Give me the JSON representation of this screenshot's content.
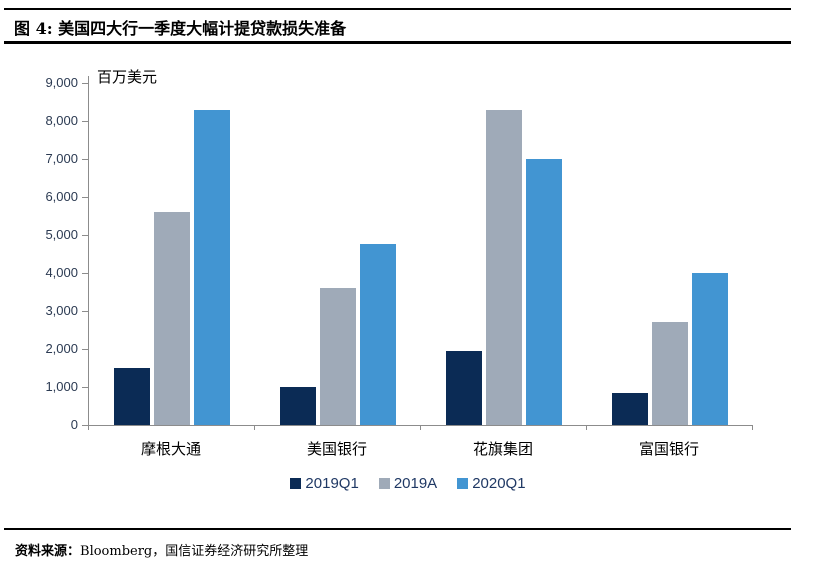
{
  "header": {
    "title": "图 4:  美国四大行一季度大幅计提贷款损失准备"
  },
  "chart_data": {
    "type": "bar",
    "title": "美国四大行一季度大幅计提贷款损失准备",
    "unit_label": "百万美元",
    "xlabel": "",
    "ylabel": "百万美元",
    "categories": [
      "摩根大通",
      "美国银行",
      "花旗集团",
      "富国银行"
    ],
    "series": [
      {
        "name": "2019Q1",
        "color": "#0b2b55",
        "values": [
          1500,
          1000,
          1950,
          850
        ]
      },
      {
        "name": "2019A",
        "color": "#9faab8",
        "values": [
          5600,
          3600,
          8300,
          2700
        ]
      },
      {
        "name": "2020Q1",
        "color": "#4295d2",
        "values": [
          8300,
          4750,
          7000,
          4000
        ]
      }
    ],
    "ylim": [
      0,
      9000
    ],
    "ytick_step": 1000,
    "ytick_labels": [
      "0",
      "1,000",
      "2,000",
      "3,000",
      "4,000",
      "5,000",
      "6,000",
      "7,000",
      "8,000",
      "9,000"
    ],
    "grid": false,
    "legend_position": "bottom"
  },
  "footer": {
    "source_label": "资料来源：",
    "source_text": "Bloomberg，国信证券经济研究所整理"
  },
  "colors": {
    "series_2019q1": "#0b2b55",
    "series_2019a": "#9faab8",
    "series_2020q1": "#4295d2",
    "legend_text": "#1f3864",
    "axis_line": "#8c8c8c",
    "tick_text": "#2b3a52",
    "rule": "#000000"
  }
}
